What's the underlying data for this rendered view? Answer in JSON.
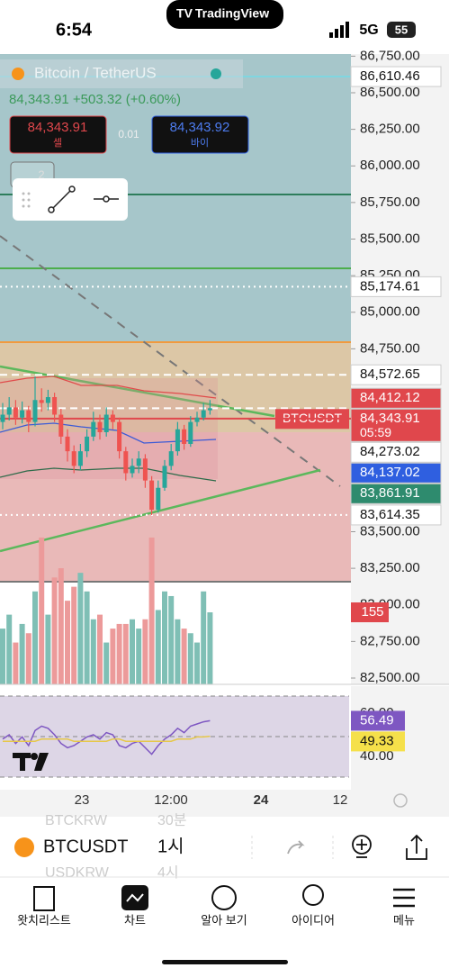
{
  "status": {
    "time": "6:54",
    "brand": "TradingView",
    "network": "5G",
    "battery": "55"
  },
  "header": {
    "symbol": "Bitcoin / TetherUS",
    "quote": "84,343.91 +503.32 (+0.60%)",
    "sell": {
      "price": "84,343.91",
      "label": "셀"
    },
    "spread": "0.01",
    "buy": {
      "price": "84,343.92",
      "label": "바이"
    },
    "toolbar_count": "2"
  },
  "price_ticks": [
    {
      "value": 86750,
      "label": "86,750.00"
    },
    {
      "value": 86500,
      "label": "86,500.00"
    },
    {
      "value": 86250,
      "label": "86,250.00"
    },
    {
      "value": 86000,
      "label": "86,000.00"
    },
    {
      "value": 85750,
      "label": "85,750.00"
    },
    {
      "value": 85500,
      "label": "85,500.00"
    },
    {
      "value": 85250,
      "label": "85,250.00"
    },
    {
      "value": 85000,
      "label": "85,000.00"
    },
    {
      "value": 84750,
      "label": "84,750.00"
    },
    {
      "value": 83500,
      "label": "83,500.00"
    },
    {
      "value": 83250,
      "label": "83,250.00"
    },
    {
      "value": 83000,
      "label": "83,000.00"
    },
    {
      "value": 82750,
      "label": "82,750.00"
    },
    {
      "value": 82500,
      "label": "82,500.00"
    }
  ],
  "price_labels": [
    {
      "value": 86610.46,
      "label": "86,610.46",
      "bg": "#ffffff",
      "fg": "#111111",
      "line": "#7fd6e0"
    },
    {
      "value": 85174.61,
      "label": "85,174.61",
      "bg": "#ffffff",
      "fg": "#111111",
      "line": "dotted"
    },
    {
      "value": 84572.65,
      "label": "84,572.65",
      "bg": "#ffffff",
      "fg": "#111111",
      "line": "dashed"
    },
    {
      "value": 84412.12,
      "label": "84,412.12",
      "bg": "#e0474c",
      "fg": "#ffffff"
    },
    {
      "value": 84343.91,
      "label": "84,343.91",
      "sub": "05:59",
      "bg": "#e0474c",
      "fg": "#ffffff",
      "line": "dashed"
    },
    {
      "value": 84273.02,
      "label": "84,273.02",
      "bg": "#ffffff",
      "fg": "#111111",
      "line": "#e0474c"
    },
    {
      "value": 84137.02,
      "label": "84,137.02",
      "bg": "#2f5fe0",
      "fg": "#ffffff"
    },
    {
      "value": 83861.91,
      "label": "83,861.91",
      "bg": "#2e8b6e",
      "fg": "#ffffff"
    },
    {
      "value": 83614.35,
      "label": "83,614.35",
      "bg": "#ffffff",
      "fg": "#111111",
      "line": "dotted"
    }
  ],
  "symbol_tag": "BTCUSDT",
  "candles": [
    [
      84250,
      84380,
      84200,
      84300
    ],
    [
      84300,
      84420,
      84260,
      84350
    ],
    [
      84350,
      84400,
      84230,
      84280
    ],
    [
      84280,
      84390,
      84240,
      84330
    ],
    [
      84330,
      84360,
      84180,
      84250
    ],
    [
      84250,
      84560,
      84220,
      84400
    ],
    [
      84400,
      84480,
      84320,
      84380
    ],
    [
      84380,
      84470,
      84330,
      84420
    ],
    [
      84420,
      84450,
      84250,
      84300
    ],
    [
      84300,
      84340,
      84100,
      84150
    ],
    [
      84150,
      84200,
      83980,
      84050
    ],
    [
      84050,
      84090,
      83900,
      83950
    ],
    [
      83950,
      84100,
      83920,
      84050
    ],
    [
      84050,
      84200,
      84010,
      84150
    ],
    [
      84150,
      84320,
      84120,
      84250
    ],
    [
      84250,
      84300,
      84130,
      84180
    ],
    [
      84180,
      84350,
      84150,
      84300
    ],
    [
      84300,
      84330,
      84200,
      84250
    ],
    [
      84250,
      84280,
      84000,
      84050
    ],
    [
      84050,
      84080,
      83850,
      83900
    ],
    [
      83900,
      84000,
      83870,
      83950
    ],
    [
      83950,
      84050,
      83900,
      84000
    ],
    [
      84000,
      84030,
      83800,
      83850
    ],
    [
      83850,
      83880,
      83614,
      83650
    ],
    [
      83650,
      83850,
      83630,
      83800
    ],
    [
      83800,
      83990,
      83780,
      83950
    ],
    [
      83950,
      84100,
      83920,
      84050
    ],
    [
      84050,
      84250,
      84020,
      84200
    ],
    [
      84200,
      84230,
      84060,
      84100
    ],
    [
      84100,
      84290,
      84080,
      84250
    ],
    [
      84250,
      84320,
      84220,
      84280
    ],
    [
      84280,
      84380,
      84260,
      84330
    ],
    [
      84330,
      84400,
      84300,
      84343.91
    ]
  ],
  "volumes": [
    120,
    150,
    90,
    130,
    110,
    200,
    316,
    150,
    230,
    250,
    180,
    210,
    240,
    200,
    140,
    150,
    90,
    120,
    130,
    130,
    140,
    120,
    140,
    316,
    160,
    200,
    190,
    140,
    120,
    110,
    90,
    200,
    155
  ],
  "volume_label": "155",
  "rsi": [
    48,
    50,
    46,
    49,
    45,
    52,
    54,
    53,
    50,
    46,
    44,
    45,
    47,
    49,
    50,
    48,
    51,
    50,
    45,
    44,
    46,
    47,
    44,
    41,
    45,
    48,
    50,
    53,
    51,
    54,
    55,
    56,
    56.49
  ],
  "rsi_ma": [
    47,
    47,
    47,
    47,
    47,
    47,
    48,
    48,
    48,
    48,
    48,
    47,
    47,
    47,
    47,
    47,
    47,
    48,
    48,
    47,
    47,
    47,
    47,
    47,
    47,
    47,
    47,
    48,
    48,
    48,
    49,
    49,
    49.33
  ],
  "rsi_ticks": [
    {
      "value": 60,
      "label": "60.00"
    },
    {
      "value": 40,
      "label": "40.00"
    }
  ],
  "rsi_labels": [
    {
      "value": 56.49,
      "label": "56.49",
      "bg": "#7e57c2",
      "fg": "#ffffff"
    },
    {
      "value": 49.33,
      "label": "49.33",
      "bg": "#f5e04a",
      "fg": "#111111"
    }
  ],
  "time_axis": [
    {
      "label": "23",
      "bold": false
    },
    {
      "label": "12:00",
      "bold": false
    },
    {
      "label": "24",
      "bold": true
    },
    {
      "label": "12",
      "bold": false
    }
  ],
  "symbol_bar": {
    "symbol": "BTCUSDT",
    "interval": "1시",
    "ghost_top": [
      "BTCKRW",
      "30분"
    ],
    "ghost_bottom": [
      "USDKRW",
      "4시"
    ]
  },
  "tabs": [
    "왓치리스트",
    "차트",
    "알아 보기",
    "아이디어",
    "메뉴"
  ]
}
